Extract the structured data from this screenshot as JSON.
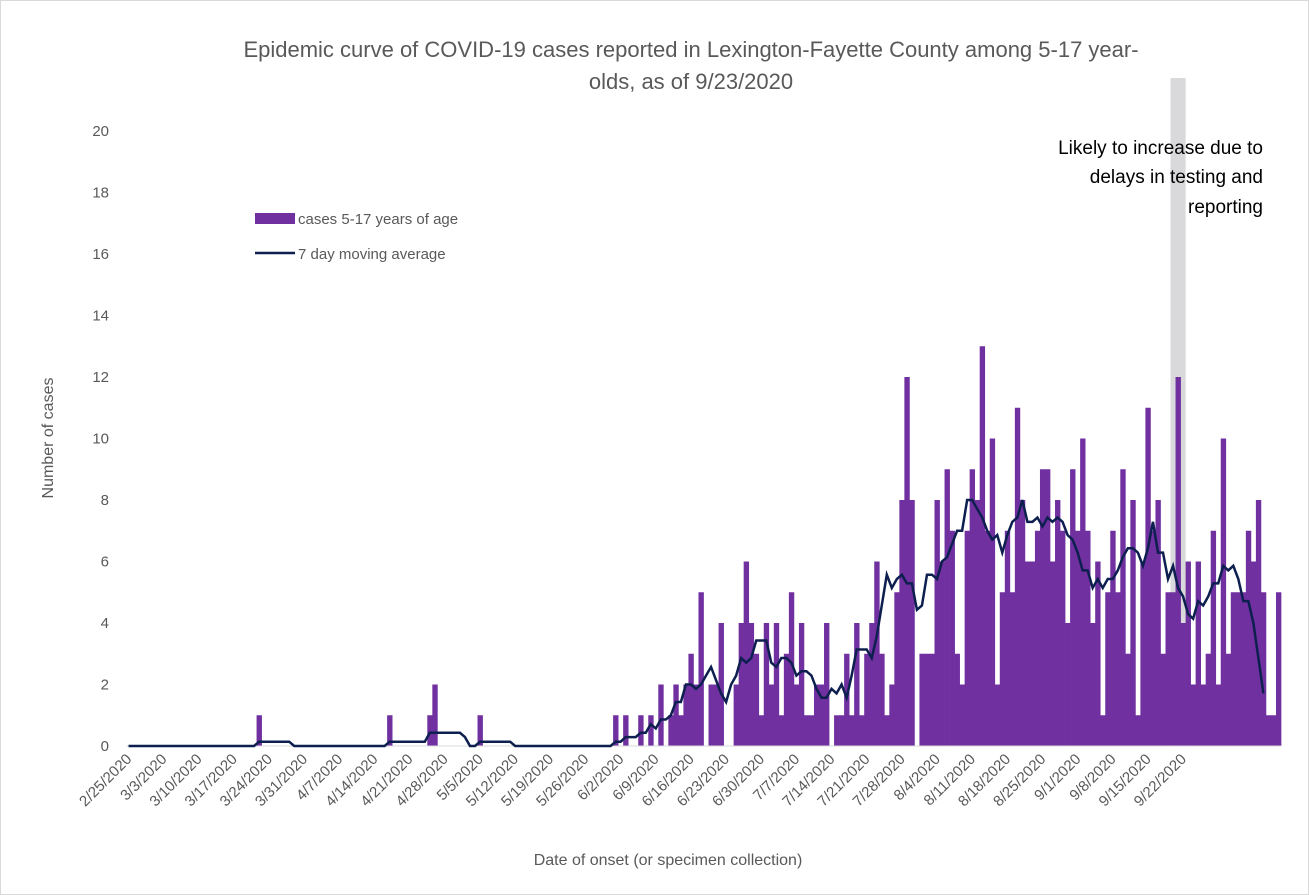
{
  "chart_data": {
    "type": "bar",
    "title_lines": [
      "Epidemic curve of COVID-19 cases reported in Lexington-Fayette County among 5-17 year-",
      "olds, as of 9/23/2020"
    ],
    "xlabel": "Date of onset (or specimen collection)",
    "ylabel": "Number of cases",
    "ylim": [
      0,
      20
    ],
    "yticks": [
      "0",
      "2",
      "4",
      "6",
      "8",
      "10",
      "12",
      "14",
      "16",
      "18",
      "20"
    ],
    "x_start": "2/25/2020",
    "x_end": "9/22/2020",
    "xtick_labels": [
      "2/25/2020",
      "3/3/2020",
      "3/10/2020",
      "3/17/2020",
      "3/24/2020",
      "3/31/2020",
      "4/7/2020",
      "4/14/2020",
      "4/21/2020",
      "4/28/2020",
      "5/5/2020",
      "5/12/2020",
      "5/19/2020",
      "5/26/2020",
      "6/2/2020",
      "6/9/2020",
      "6/16/2020",
      "6/23/2020",
      "6/30/2020",
      "7/7/2020",
      "7/14/2020",
      "7/21/2020",
      "7/28/2020",
      "8/4/2020",
      "8/11/2020",
      "8/18/2020",
      "8/25/2020",
      "9/1/2020",
      "9/8/2020",
      "9/15/2020",
      "9/22/2020"
    ],
    "grid": false,
    "legend_position": "upper-left",
    "bar_color": "#7030a0",
    "line_color": "#0d1f4f",
    "shade_color": "#d9d9db",
    "series": [
      {
        "name": "cases 5-17 years of age",
        "type": "bar",
        "values": [
          0,
          0,
          0,
          0,
          0,
          0,
          0,
          0,
          0,
          0,
          0,
          0,
          0,
          0,
          0,
          0,
          0,
          0,
          0,
          0,
          0,
          0,
          0,
          0,
          0,
          0,
          1,
          0,
          0,
          0,
          0,
          0,
          0,
          0,
          0,
          0,
          0,
          0,
          0,
          0,
          0,
          0,
          0,
          0,
          0,
          0,
          0,
          0,
          0,
          0,
          0,
          0,
          1,
          0,
          0,
          0,
          0,
          0,
          0,
          0,
          1,
          2,
          0,
          0,
          0,
          0,
          0,
          0,
          0,
          0,
          1,
          0,
          0,
          0,
          0,
          0,
          0,
          0,
          0,
          0,
          0,
          0,
          0,
          0,
          0,
          0,
          0,
          0,
          0,
          0,
          0,
          0,
          0,
          0,
          0,
          0,
          0,
          1,
          0,
          1,
          0,
          0,
          1,
          0,
          1,
          0,
          2,
          0,
          1,
          2,
          1,
          2,
          3,
          2,
          5,
          0,
          2,
          2,
          4,
          0,
          0,
          2,
          4,
          6,
          4,
          3,
          1,
          4,
          2,
          4,
          1,
          3,
          5,
          2,
          4,
          1,
          1,
          2,
          2,
          4,
          0,
          1,
          1,
          3,
          1,
          4,
          1,
          3,
          4,
          6,
          3,
          1,
          2,
          5,
          8,
          12,
          8,
          0,
          3,
          3,
          3,
          8,
          6,
          9,
          7,
          3,
          2,
          7,
          9,
          8,
          13,
          7,
          10,
          2,
          5,
          7,
          5,
          11,
          8,
          6,
          6,
          7,
          9,
          9,
          6,
          8,
          7,
          4,
          9,
          7,
          10,
          7,
          4,
          6,
          1,
          5,
          7,
          5,
          9,
          3,
          8,
          1,
          6,
          11,
          7,
          8,
          3,
          5,
          5,
          12,
          4,
          6,
          2,
          6,
          2,
          3,
          7,
          2,
          10,
          3,
          5,
          5,
          5,
          7,
          6,
          8,
          5,
          1,
          1,
          5
        ]
      },
      {
        "name": "7 day moving average",
        "type": "line",
        "values": [
          0,
          0,
          0,
          0,
          0,
          0,
          0,
          0,
          0,
          0,
          0,
          0,
          0,
          0,
          0,
          0,
          0,
          0,
          0,
          0,
          0,
          0,
          0,
          0,
          0,
          0,
          0.14,
          0.14,
          0.14,
          0.14,
          0.14,
          0.14,
          0.14,
          0,
          0,
          0,
          0,
          0,
          0,
          0,
          0,
          0,
          0,
          0,
          0,
          0,
          0,
          0,
          0,
          0,
          0,
          0,
          0.14,
          0.14,
          0.14,
          0.14,
          0.14,
          0.14,
          0.14,
          0.14,
          0.43,
          0.43,
          0.43,
          0.43,
          0.43,
          0.43,
          0.43,
          0.29,
          0,
          0,
          0.14,
          0.14,
          0.14,
          0.14,
          0.14,
          0.14,
          0.14,
          0,
          0,
          0,
          0,
          0,
          0,
          0,
          0,
          0,
          0,
          0,
          0,
          0,
          0,
          0,
          0,
          0,
          0,
          0,
          0,
          0.14,
          0.14,
          0.29,
          0.29,
          0.29,
          0.43,
          0.43,
          0.71,
          0.57,
          0.86,
          0.86,
          1.0,
          1.43,
          1.43,
          2.0,
          2.0,
          1.86,
          2.0,
          2.29,
          2.57,
          2.14,
          1.71,
          1.43,
          2.0,
          2.29,
          2.86,
          2.71,
          2.86,
          3.43,
          3.43,
          3.43,
          2.71,
          2.57,
          2.86,
          2.86,
          2.71,
          2.29,
          2.43,
          2.43,
          2.29,
          1.86,
          1.57,
          1.57,
          1.86,
          1.71,
          2.0,
          1.57,
          2.29,
          3.14,
          3.14,
          3.14,
          2.86,
          3.57,
          4.57,
          5.57,
          5.14,
          5.43,
          5.57,
          5.29,
          5.29,
          4.43,
          4.57,
          5.57,
          5.57,
          5.43,
          6.0,
          6.14,
          6.57,
          7.0,
          7.0,
          8.0,
          8.0,
          7.71,
          7.43,
          7.0,
          6.71,
          6.86,
          6.29,
          6.86,
          7.29,
          7.43,
          8.0,
          7.29,
          7.29,
          7.43,
          7.14,
          7.43,
          7.29,
          7.43,
          7.29,
          6.86,
          6.71,
          6.29,
          5.71,
          5.71,
          5.14,
          5.43,
          5.14,
          5.43,
          5.43,
          5.71,
          6.14,
          6.43,
          6.43,
          6.29,
          5.86,
          6.43,
          7.29,
          6.29,
          6.29,
          5.43,
          5.86,
          5.14,
          4.86,
          4.29,
          4.14,
          4.71,
          4.57,
          4.86,
          5.29,
          5.29,
          5.86,
          5.71,
          5.86,
          5.43,
          4.71,
          4.71,
          4.0,
          2.86,
          1.71
        ]
      }
    ],
    "annotation": {
      "lines": [
        "Likely to increase due to",
        "delays in testing and",
        "reporting"
      ],
      "shaded_range": [
        "9/20/2020",
        "9/22/2020"
      ]
    }
  }
}
